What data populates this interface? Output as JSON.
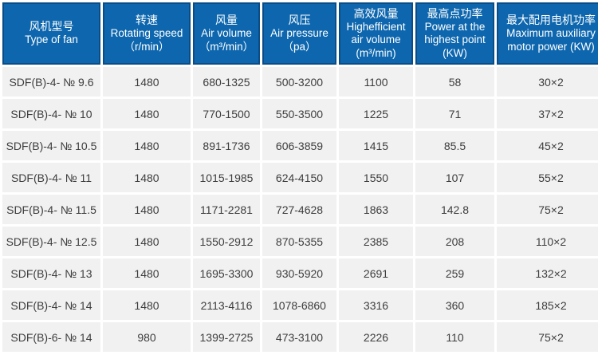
{
  "colors": {
    "header_bg": "#0e67ae",
    "header_border": "#0a4c86",
    "header_text": "#ffffff",
    "row_bg": "#f1f1f2",
    "body_text": "#3d3d3d",
    "gap": "#ffffff"
  },
  "table": {
    "columns": [
      {
        "zh": "风机型号",
        "en1": "Type of fan"
      },
      {
        "zh": "转速",
        "en1": "Rotating speed",
        "unit": "（r/min）"
      },
      {
        "zh": "风量",
        "en1": "Air volume",
        "unit": "（m³/min）"
      },
      {
        "zh": "风压",
        "en1": "Air pressure",
        "unit": "（pa）"
      },
      {
        "zh": "高效风量",
        "en1": "Highefficient",
        "en2": "air volume",
        "unit": "(m³/min)"
      },
      {
        "zh": "最高点功率",
        "en1": "Power at the",
        "en2": "highest point",
        "unit": "(KW)"
      },
      {
        "zh": "最大配用电机功率",
        "en1": "Maximum auxiliary",
        "en2": "motor power (KW)"
      }
    ],
    "rows": [
      [
        "SDF(B)-4- № 9.6",
        "1480",
        "680-1325",
        "500-3200",
        "1100",
        "58",
        "30×2"
      ],
      [
        "SDF(B)-4- № 10",
        "1480",
        "770-1500",
        "550-3500",
        "1225",
        "71",
        "37×2"
      ],
      [
        "SDF(B)-4- № 10.5",
        "1480",
        "891-1736",
        "606-3859",
        "1415",
        "85.5",
        "45×2"
      ],
      [
        "SDF(B)-4- № 11",
        "1480",
        "1015-1985",
        "624-4150",
        "1550",
        "107",
        "55×2"
      ],
      [
        "SDF(B)-4- № 11.5",
        "1480",
        "1171-2281",
        "727-4628",
        "1863",
        "142.8",
        "75×2"
      ],
      [
        "SDF(B)-4- № 12.5",
        "1480",
        "1550-2912",
        "870-5355",
        "2385",
        "208",
        "110×2"
      ],
      [
        "SDF(B)-4- № 13",
        "1480",
        "1695-3300",
        "930-5920",
        "2691",
        "259",
        "132×2"
      ],
      [
        "SDF(B)-4- № 14",
        "1480",
        "2113-4116",
        "1078-6860",
        "3316",
        "360",
        "185×2"
      ],
      [
        "SDF(B)-6- № 14",
        "980",
        "1399-2725",
        "473-3100",
        "2226",
        "110",
        "75×2"
      ]
    ]
  }
}
